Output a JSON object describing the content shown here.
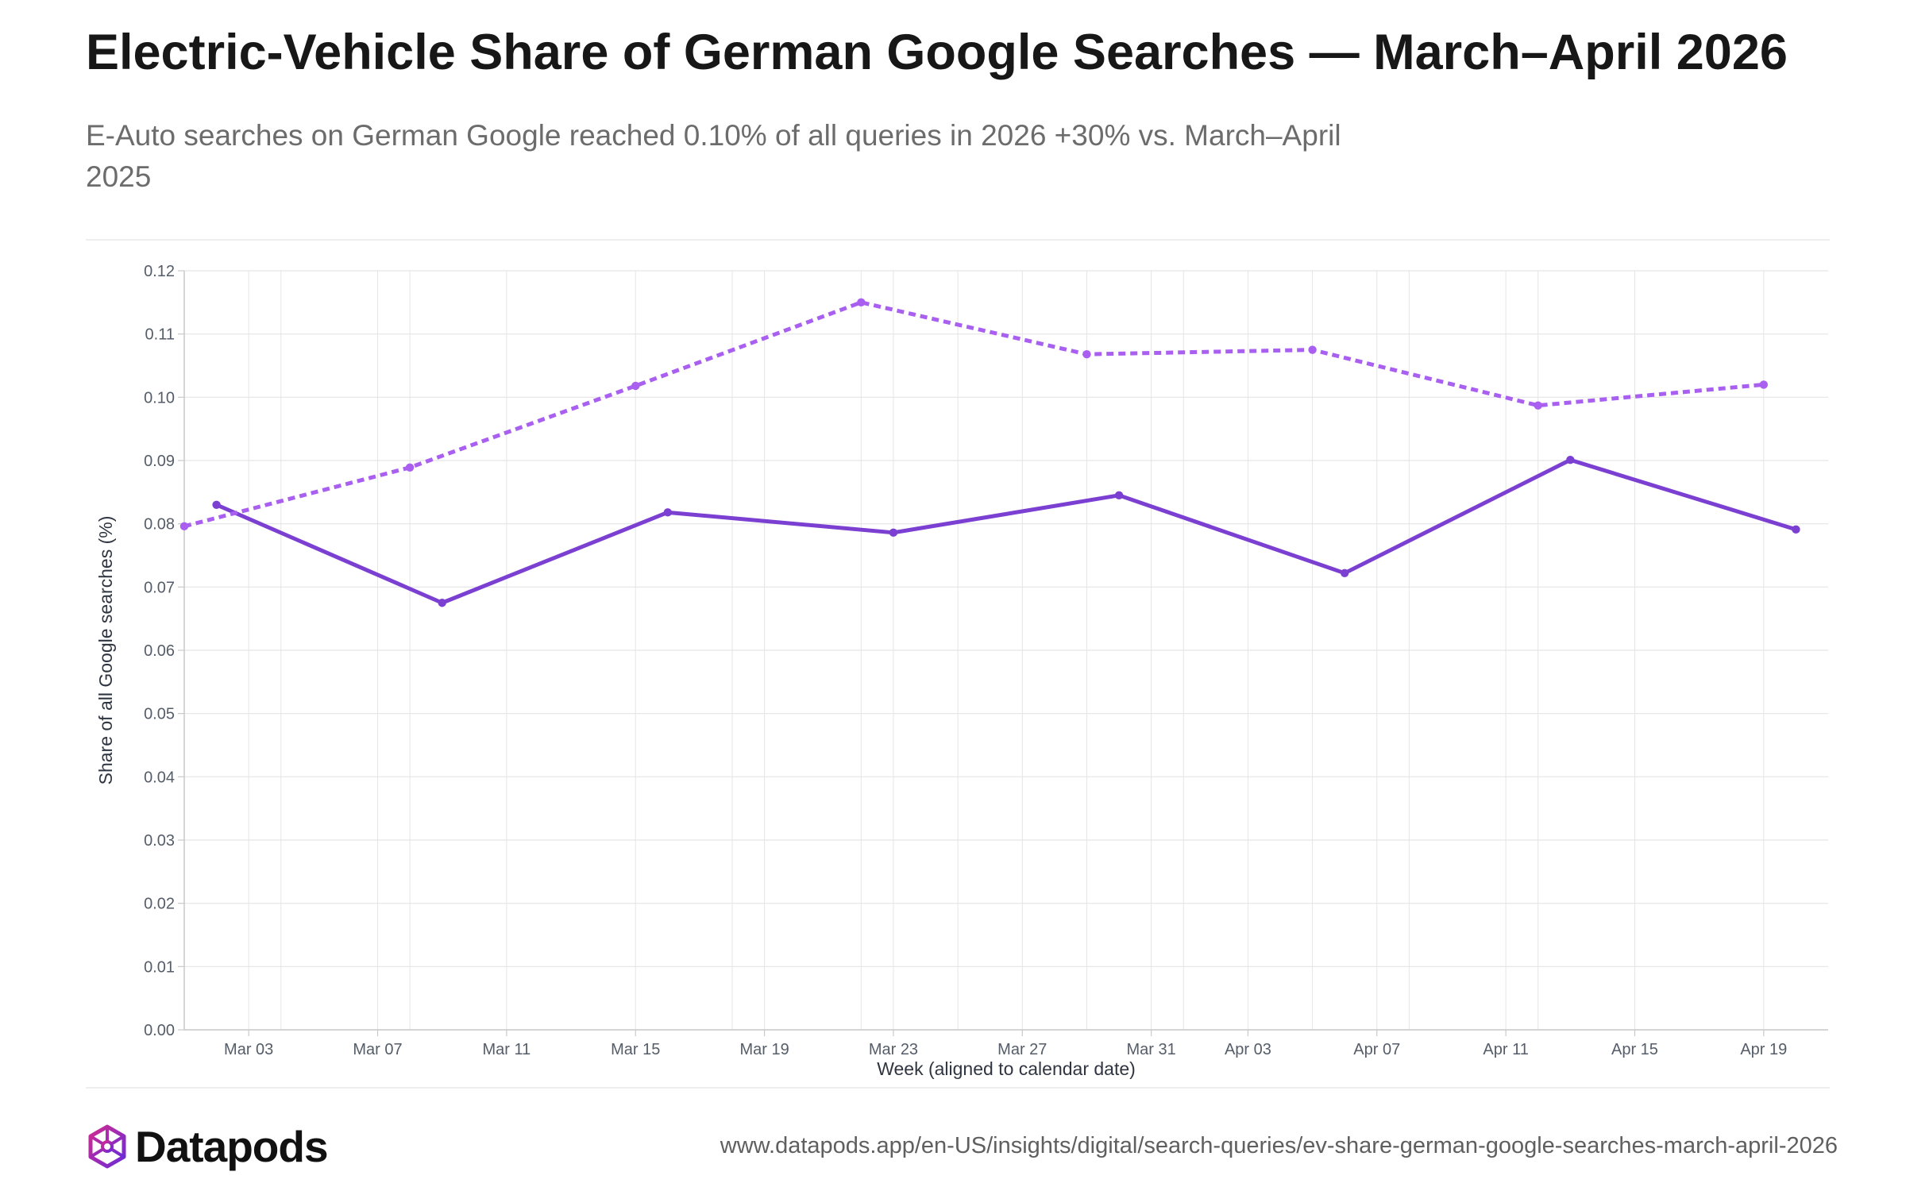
{
  "title": "Electric-Vehicle Share of German Google Searches — March–April 2026",
  "subtitle": "E-Auto searches on German Google reached 0.10% of all queries in 2026 +30% vs. March–April 2025",
  "brand": {
    "name": "Datapods",
    "logo_icon": "cube-network-logo",
    "url": "www.datapods.app/en-US/insights/digital/search-queries/ev-share-german-google-searches-march-april-2026"
  },
  "colors": {
    "series_2026": "#7b3fd2",
    "series_2025": "#a95ff0",
    "grid": "#e5e5e5",
    "axis": "#c9c9c9"
  },
  "chart_data": {
    "type": "line",
    "title": "Electric-Vehicle Share of German Google Searches — March–April 2026",
    "xlabel": "Week (aligned to calendar date)",
    "ylabel": "Share of all Google searches (%)",
    "xlim": [
      "2026-03-01",
      "2026-04-21"
    ],
    "ylim": [
      0,
      0.12
    ],
    "yticks": [
      0.0,
      0.01,
      0.02,
      0.03,
      0.04,
      0.05,
      0.06,
      0.07,
      0.08,
      0.09,
      0.1,
      0.11,
      0.12
    ],
    "ytick_labels": [
      "0.00",
      "0.01",
      "0.02",
      "0.03",
      "0.04",
      "0.05",
      "0.06",
      "0.07",
      "0.08",
      "0.09",
      "0.10",
      "0.11",
      "0.12"
    ],
    "xticks": [
      "2026-03-03",
      "2026-03-07",
      "2026-03-11",
      "2026-03-15",
      "2026-03-19",
      "2026-03-23",
      "2026-03-27",
      "2026-03-31",
      "2026-04-03",
      "2026-04-07",
      "2026-04-11",
      "2026-04-15",
      "2026-04-19"
    ],
    "xtick_labels": [
      "Mar 03",
      "Mar 07",
      "Mar 11",
      "Mar 15",
      "Mar 19",
      "Mar 23",
      "Mar 27",
      "Mar 31",
      "Apr 03",
      "Apr 07",
      "Apr 11",
      "Apr 15",
      "Apr 19"
    ],
    "grid": true,
    "legend": "none",
    "series": [
      {
        "line_style": "solid",
        "color": "#7b3fd2",
        "points": [
          {
            "x": "2026-03-02",
            "y": 0.083
          },
          {
            "x": "2026-03-09",
            "y": 0.0675
          },
          {
            "x": "2026-03-16",
            "y": 0.0818
          },
          {
            "x": "2026-03-23",
            "y": 0.0786
          },
          {
            "x": "2026-03-30",
            "y": 0.0845
          },
          {
            "x": "2026-04-06",
            "y": 0.0722
          },
          {
            "x": "2026-04-13",
            "y": 0.0901
          },
          {
            "x": "2026-04-20",
            "y": 0.0791
          }
        ]
      },
      {
        "line_style": "dashed",
        "color": "#a95ff0",
        "points": [
          {
            "x": "2026-03-01",
            "y": 0.0796
          },
          {
            "x": "2026-03-08",
            "y": 0.0889
          },
          {
            "x": "2026-03-15",
            "y": 0.1018
          },
          {
            "x": "2026-03-22",
            "y": 0.115
          },
          {
            "x": "2026-03-29",
            "y": 0.1068
          },
          {
            "x": "2026-04-05",
            "y": 0.1075
          },
          {
            "x": "2026-04-12",
            "y": 0.0987
          },
          {
            "x": "2026-04-19",
            "y": 0.102
          }
        ]
      }
    ]
  }
}
